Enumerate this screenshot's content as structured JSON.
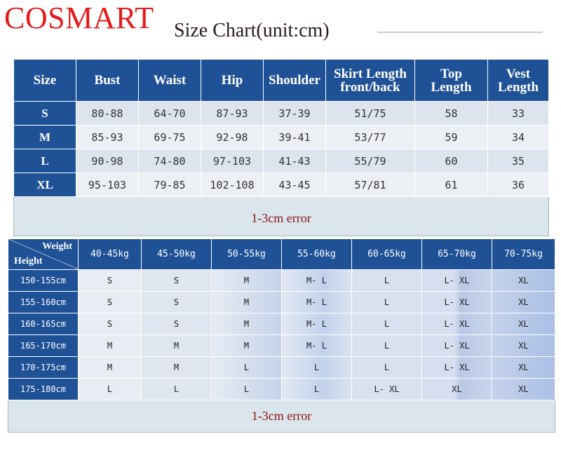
{
  "brand": "COSMART",
  "title": "Size Chart(unit:cm)",
  "table1": {
    "headers": [
      "Size",
      "Bust",
      "Waist",
      "Hip",
      "Shoulder",
      "Skirt Length front/back",
      "Top Length",
      "Vest Length"
    ],
    "rows": [
      [
        "S",
        "80-88",
        "64-70",
        "87-93",
        "37-39",
        "51/75",
        "58",
        "33"
      ],
      [
        "M",
        "85-93",
        "69-75",
        "92-98",
        "39-41",
        "53/77",
        "59",
        "34"
      ],
      [
        "L",
        "90-98",
        "74-80",
        "97-103",
        "41-43",
        "55/79",
        "60",
        "35"
      ],
      [
        "XL",
        "95-103",
        "79-85",
        "102-108",
        "43-45",
        "57/81",
        "61",
        "36"
      ]
    ],
    "note": "1-3cm error"
  },
  "table2": {
    "corner_weight": "Weight",
    "corner_height": "Height",
    "weights": [
      "40-45kg",
      "45-50kg",
      "50-55kg",
      "55-60kg",
      "60-65kg",
      "65-70kg",
      "70-75kg"
    ],
    "rows": [
      [
        "150-155cm",
        "S",
        "S",
        "M",
        "M- L",
        "L",
        "L- XL",
        "XL"
      ],
      [
        "155-160cm",
        "S",
        "S",
        "M",
        "M- L",
        "L",
        "L- XL",
        "XL"
      ],
      [
        "160-165cm",
        "S",
        "S",
        "M",
        "M- L",
        "L",
        "L- XL",
        "XL"
      ],
      [
        "165-170cm",
        "M",
        "M",
        "M",
        "M- L",
        "L",
        "L- XL",
        "XL"
      ],
      [
        "170-175cm",
        "M",
        "M",
        "L",
        "L",
        "L",
        "L- XL",
        "XL"
      ],
      [
        "175-180cm",
        "L",
        "L",
        "L",
        "L",
        "L- XL",
        "XL",
        "XL"
      ]
    ],
    "note": "1-3cm error"
  }
}
